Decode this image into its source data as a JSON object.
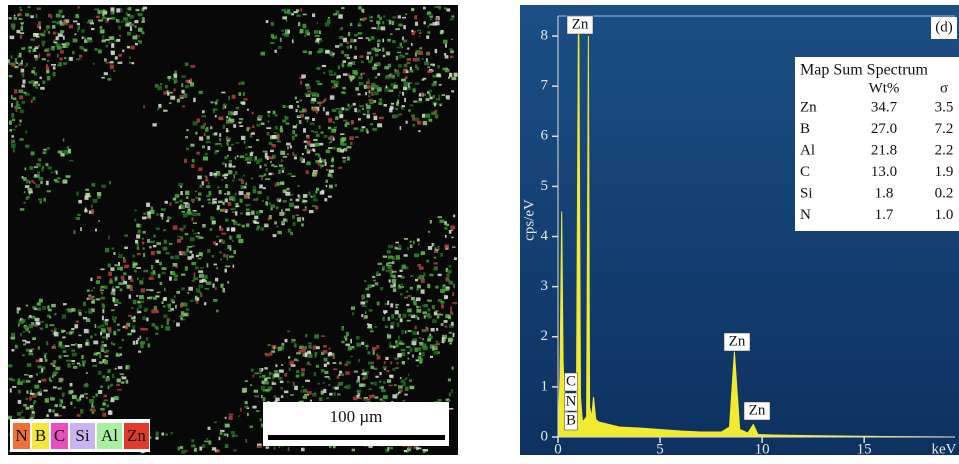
{
  "map": {
    "legend": [
      "N",
      "B",
      "C",
      "Si",
      "Al",
      "Zn"
    ],
    "scale_bar": "100 µm"
  },
  "chart_data": {
    "type": "area",
    "panel_label": "(d)",
    "y_label": "cps/eV",
    "x_label": "keV",
    "color": "#f2ea2e",
    "x": [
      0,
      0.1,
      0.18,
      0.25,
      0.3,
      0.4,
      0.5,
      0.7,
      0.9,
      1.0,
      1.02,
      1.1,
      1.2,
      1.4,
      1.49,
      1.55,
      1.65,
      1.74,
      1.85,
      2.0,
      2.5,
      3,
      4,
      5,
      6,
      7,
      8,
      8.4,
      8.64,
      8.9,
      9.3,
      9.57,
      9.8,
      10.5,
      12,
      14,
      16,
      19.3
    ],
    "values": [
      0,
      1.2,
      4.5,
      1.5,
      1.0,
      0.7,
      0.4,
      0.3,
      0.5,
      8.3,
      8.3,
      0.8,
      0.3,
      0.4,
      8.0,
      0.6,
      0.4,
      0.8,
      0.35,
      0.3,
      0.25,
      0.2,
      0.18,
      0.15,
      0.12,
      0.1,
      0.1,
      0.2,
      1.7,
      0.15,
      0.08,
      0.25,
      0.05,
      0.04,
      0.03,
      0.02,
      0.01,
      0
    ],
    "xlim": [
      0,
      19.45
    ],
    "ylim": [
      0,
      8.4
    ],
    "xticks": [
      0,
      5,
      10,
      15
    ],
    "yticks": [
      0,
      1,
      2,
      3,
      4,
      5,
      6,
      7,
      8
    ],
    "annotations": [
      "Zn",
      "Zn",
      "Zn",
      "C",
      "N",
      "B"
    ],
    "inset_table": {
      "title": "Map Sum Spectrum",
      "columns": [
        "Wt%",
        "σ"
      ],
      "rows": [
        [
          "Zn",
          "34.7",
          "3.5"
        ],
        [
          "B",
          "27.0",
          "7.2"
        ],
        [
          "Al",
          "21.8",
          "2.2"
        ],
        [
          "C",
          "13.0",
          "1.9"
        ],
        [
          "Si",
          "1.8",
          "0.2"
        ],
        [
          "N",
          "1.7",
          "1.0"
        ]
      ]
    }
  }
}
